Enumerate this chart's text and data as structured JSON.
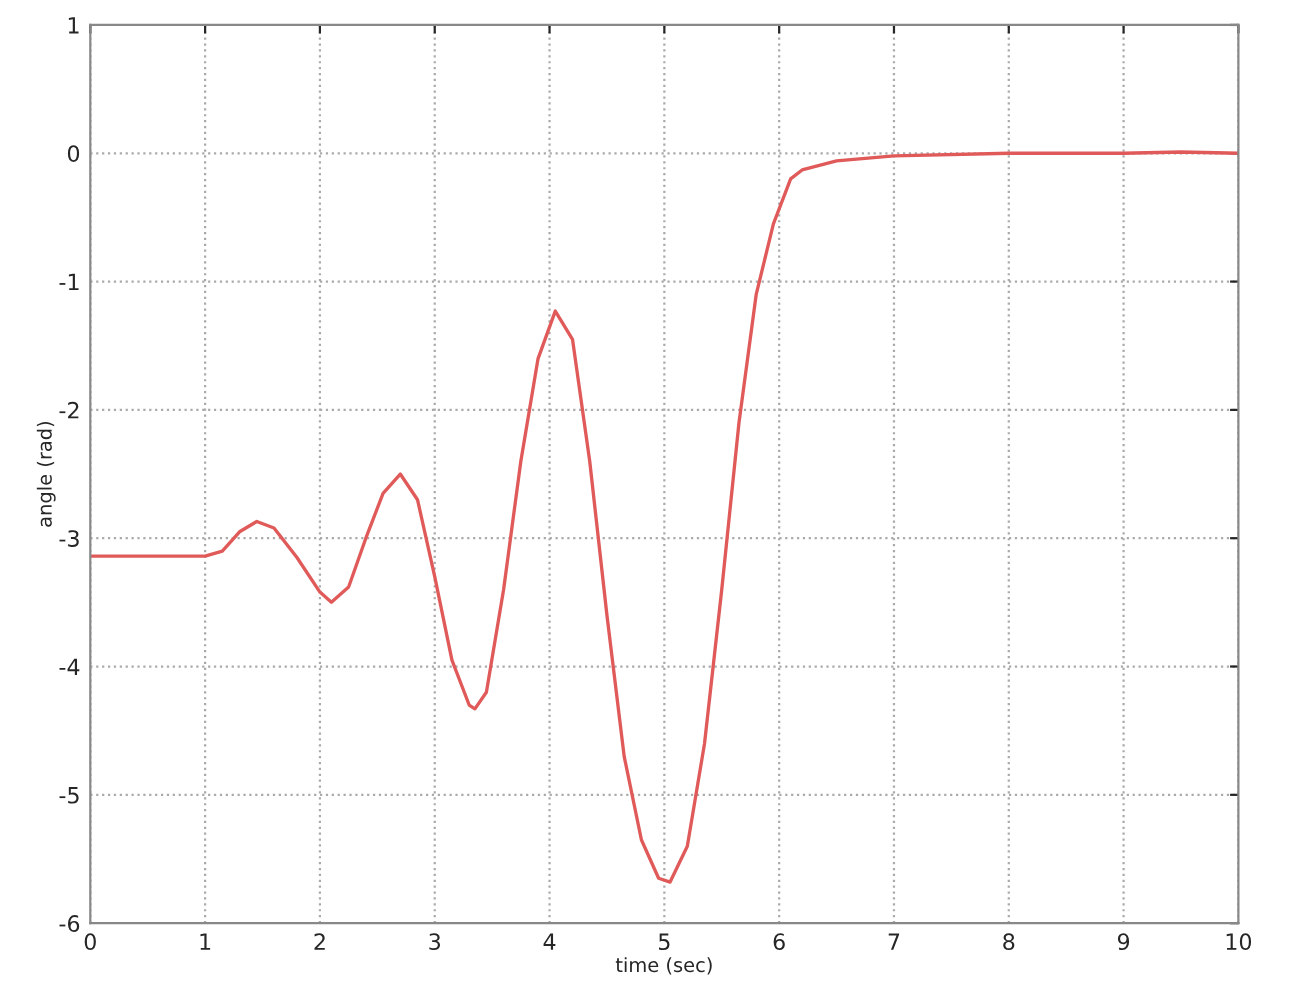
{
  "chart_data": {
    "type": "line",
    "xlabel": "time (sec)",
    "ylabel": "angle (rad)",
    "xlim": [
      0,
      10
    ],
    "ylim": [
      -6,
      1
    ],
    "xticks": [
      0,
      1,
      2,
      3,
      4,
      5,
      6,
      7,
      8,
      9,
      10
    ],
    "yticks": [
      -6,
      -5,
      -4,
      -3,
      -2,
      -1,
      0,
      1
    ],
    "grid": true,
    "line_style": "solid",
    "marker": "none",
    "series": [
      {
        "color": "#e05a5a",
        "x": [
          0,
          1.0,
          1.15,
          1.3,
          1.45,
          1.6,
          1.8,
          2.0,
          2.1,
          2.25,
          2.4,
          2.55,
          2.7,
          2.85,
          3.0,
          3.15,
          3.3,
          3.35,
          3.45,
          3.6,
          3.75,
          3.9,
          4.05,
          4.2,
          4.35,
          4.5,
          4.65,
          4.8,
          4.95,
          5.05,
          5.2,
          5.35,
          5.5,
          5.65,
          5.8,
          5.95,
          6.1,
          6.2,
          6.5,
          7.0,
          8.0,
          9.0,
          9.5,
          10
        ],
        "values": [
          -3.14,
          -3.14,
          -3.1,
          -2.95,
          -2.87,
          -2.92,
          -3.15,
          -3.42,
          -3.5,
          -3.38,
          -3.0,
          -2.65,
          -2.5,
          -2.7,
          -3.3,
          -3.95,
          -4.3,
          -4.33,
          -4.2,
          -3.4,
          -2.4,
          -1.6,
          -1.23,
          -1.45,
          -2.4,
          -3.6,
          -4.7,
          -5.35,
          -5.65,
          -5.68,
          -5.4,
          -4.6,
          -3.4,
          -2.1,
          -1.1,
          -0.55,
          -0.2,
          -0.13,
          -0.06,
          -0.02,
          0.0,
          0.0,
          0.01,
          0.0
        ]
      }
    ]
  }
}
